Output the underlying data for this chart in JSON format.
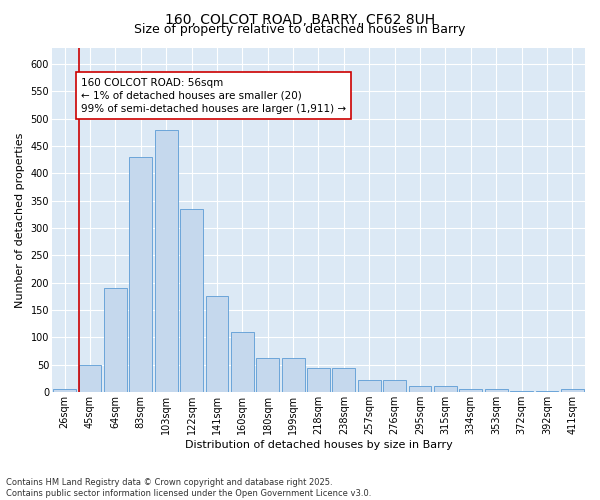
{
  "title_line1": "160, COLCOT ROAD, BARRY, CF62 8UH",
  "title_line2": "Size of property relative to detached houses in Barry",
  "xlabel": "Distribution of detached houses by size in Barry",
  "ylabel": "Number of detached properties",
  "categories": [
    "26sqm",
    "45sqm",
    "64sqm",
    "83sqm",
    "103sqm",
    "122sqm",
    "141sqm",
    "160sqm",
    "180sqm",
    "199sqm",
    "218sqm",
    "238sqm",
    "257sqm",
    "276sqm",
    "295sqm",
    "315sqm",
    "334sqm",
    "353sqm",
    "372sqm",
    "392sqm",
    "411sqm"
  ],
  "values": [
    5,
    50,
    190,
    430,
    480,
    335,
    175,
    110,
    62,
    62,
    45,
    45,
    22,
    22,
    12,
    12,
    6,
    6,
    2,
    2,
    5
  ],
  "bar_color": "#c5d8ed",
  "bar_edge_color": "#5b9bd5",
  "vline_x_index": 1,
  "vline_color": "#cc0000",
  "annotation_text": "160 COLCOT ROAD: 56sqm\n← 1% of detached houses are smaller (20)\n99% of semi-detached houses are larger (1,911) →",
  "annotation_box_color": "#ffffff",
  "annotation_box_edge": "#cc0000",
  "ylim": [
    0,
    630
  ],
  "yticks": [
    0,
    50,
    100,
    150,
    200,
    250,
    300,
    350,
    400,
    450,
    500,
    550,
    600
  ],
  "plot_bg_color": "#dce9f5",
  "footer_text": "Contains HM Land Registry data © Crown copyright and database right 2025.\nContains public sector information licensed under the Open Government Licence v3.0.",
  "title_fontsize": 10,
  "subtitle_fontsize": 9,
  "axis_label_fontsize": 8,
  "tick_fontsize": 7,
  "annotation_fontsize": 7.5,
  "footer_fontsize": 6
}
